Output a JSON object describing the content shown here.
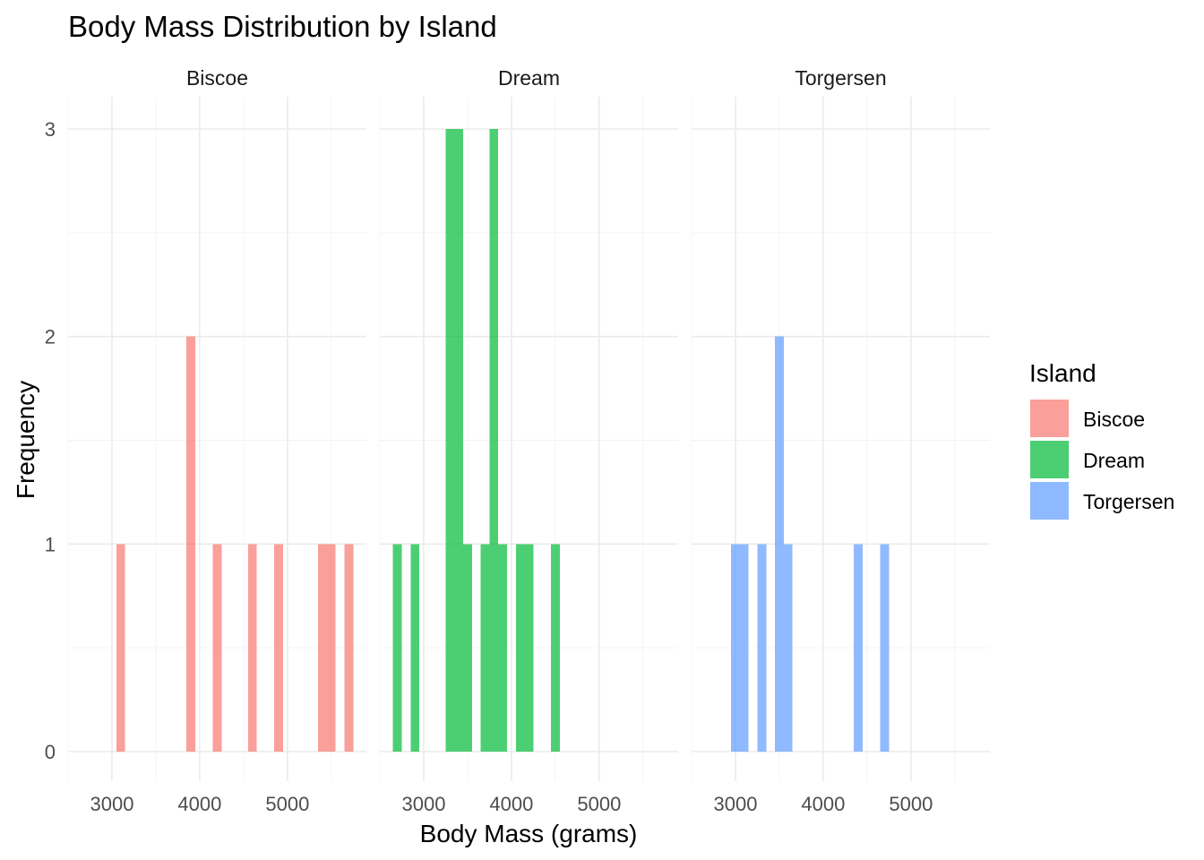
{
  "chart_data": {
    "type": "bar",
    "title": "Body Mass Distribution by Island",
    "xlabel": "Body Mass (grams)",
    "ylabel": "Frequency",
    "xlim": [
      2500,
      5900
    ],
    "ylim": [
      0,
      3
    ],
    "x_ticks": [
      3000,
      4000,
      5000
    ],
    "y_ticks": [
      0,
      1,
      2,
      3
    ],
    "bin_width": 100,
    "grid": true,
    "legend": {
      "title": "Island",
      "position": "right",
      "entries": [
        "Biscoe",
        "Dream",
        "Torgersen"
      ]
    },
    "series": [
      {
        "name": "Biscoe",
        "color": "#F8766D",
        "bins": [
          {
            "x": 3100,
            "count": 1
          },
          {
            "x": 3900,
            "count": 2
          },
          {
            "x": 4200,
            "count": 1
          },
          {
            "x": 4600,
            "count": 1
          },
          {
            "x": 4900,
            "count": 1
          },
          {
            "x": 5400,
            "count": 1
          },
          {
            "x": 5500,
            "count": 1
          },
          {
            "x": 5700,
            "count": 1
          }
        ]
      },
      {
        "name": "Dream",
        "color": "#00BA38",
        "bins": [
          {
            "x": 2700,
            "count": 1
          },
          {
            "x": 2900,
            "count": 1
          },
          {
            "x": 3300,
            "count": 3
          },
          {
            "x": 3400,
            "count": 3
          },
          {
            "x": 3500,
            "count": 1
          },
          {
            "x": 3700,
            "count": 1
          },
          {
            "x": 3800,
            "count": 3
          },
          {
            "x": 3900,
            "count": 1
          },
          {
            "x": 4100,
            "count": 1
          },
          {
            "x": 4200,
            "count": 1
          },
          {
            "x": 4500,
            "count": 1
          }
        ]
      },
      {
        "name": "Torgersen",
        "color": "#619CFF",
        "bins": [
          {
            "x": 3000,
            "count": 1
          },
          {
            "x": 3100,
            "count": 1
          },
          {
            "x": 3300,
            "count": 1
          },
          {
            "x": 3500,
            "count": 2
          },
          {
            "x": 3600,
            "count": 1
          },
          {
            "x": 4400,
            "count": 1
          },
          {
            "x": 4700,
            "count": 1
          }
        ]
      }
    ]
  }
}
